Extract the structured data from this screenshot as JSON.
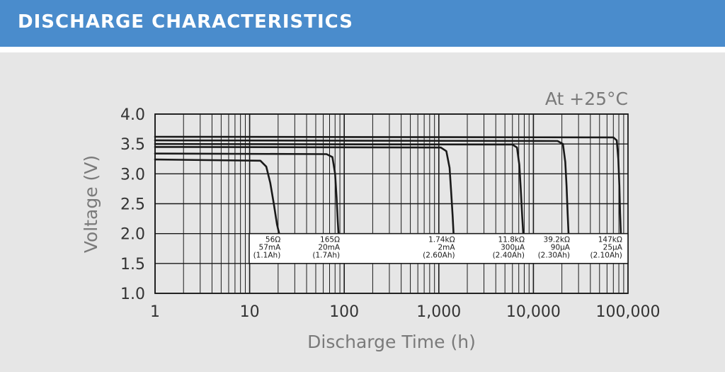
{
  "header": {
    "title": "DISCHARGE CHARACTERISTICS"
  },
  "chart_data": {
    "type": "line",
    "annotation": "At +25°C",
    "xlabel": "Discharge Time (h)",
    "ylabel": "Voltage (V)",
    "x_scale": "log",
    "xlim": [
      1,
      100000
    ],
    "ylim": [
      1.0,
      4.0
    ],
    "x_ticks": [
      "1",
      "10",
      "100",
      "1,000",
      "10,000",
      "100,000"
    ],
    "y_ticks": [
      "1.0",
      "1.5",
      "2.0",
      "2.5",
      "3.0",
      "3.5",
      "4.0"
    ],
    "grid": true,
    "series": [
      {
        "labels": [
          "56Ω",
          "57mA",
          "(1.1Ah)"
        ],
        "x": [
          1,
          13,
          15,
          16.5,
          18,
          19.5,
          20.5
        ],
        "y": [
          3.24,
          3.22,
          3.12,
          2.85,
          2.5,
          2.15,
          2.0
        ]
      },
      {
        "labels": [
          "165Ω",
          "20mA",
          "(1.7Ah)"
        ],
        "x": [
          1,
          65,
          75,
          80,
          83,
          85.5,
          87
        ],
        "y": [
          3.34,
          3.33,
          3.28,
          3.0,
          2.6,
          2.2,
          2.0
        ]
      },
      {
        "labels": [
          "1.74kΩ",
          "2mA",
          "(2.60Ah)"
        ],
        "x": [
          1,
          1050,
          1200,
          1300,
          1350,
          1400,
          1430
        ],
        "y": [
          3.45,
          3.44,
          3.38,
          3.1,
          2.7,
          2.3,
          2.0
        ]
      },
      {
        "labels": [
          "11.8kΩ",
          "300μA",
          "(2.40Ah)"
        ],
        "x": [
          1,
          6000,
          6700,
          7100,
          7350,
          7600,
          7800
        ],
        "y": [
          3.5,
          3.49,
          3.44,
          3.15,
          2.75,
          2.3,
          2.0
        ]
      },
      {
        "labels": [
          "39.2kΩ",
          "90μA",
          "(2.30Ah)"
        ],
        "x": [
          1,
          18000,
          20500,
          21700,
          22400,
          23000,
          23500
        ],
        "y": [
          3.56,
          3.55,
          3.5,
          3.2,
          2.8,
          2.35,
          2.0
        ]
      },
      {
        "labels": [
          "147kΩ",
          "25μA",
          "(2.10Ah)"
        ],
        "x": [
          1,
          70000,
          76000,
          79000,
          81000,
          82500,
          84000
        ],
        "y": [
          3.62,
          3.61,
          3.56,
          3.25,
          2.8,
          2.35,
          2.0
        ]
      }
    ]
  }
}
